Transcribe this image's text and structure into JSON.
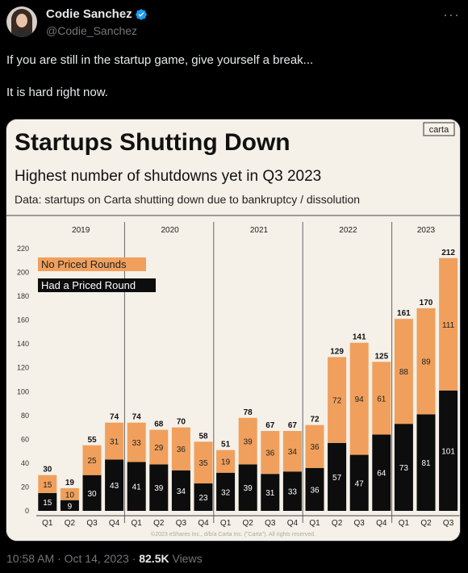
{
  "tweet": {
    "author_name": "Codie Sanchez",
    "author_handle": "@Codie_Sanchez",
    "text_line1": "If you are still in the startup game, give yourself a break...",
    "text_line2": "It is hard right now.",
    "time": "10:58 AM",
    "date": "Oct 14, 2023",
    "views_count": "82.5K",
    "views_label": "Views",
    "separator": "·"
  },
  "icons": {
    "verified": "verified-badge-icon",
    "more": "more-options-icon"
  },
  "colors": {
    "no_priced": "#f0a05c",
    "priced": "#0d0d0d",
    "chart_bg": "#f5f0e8",
    "verified": "#1d9bf0"
  },
  "chart_data": {
    "type": "bar",
    "stacked": true,
    "title": "Startups Shutting Down",
    "subtitle": "Highest number of shutdowns yet in Q3 2023",
    "source_note": "Data: startups on Carta shutting down due to bankruptcy / dissolution",
    "brand": "carta",
    "copyright": "©2023 eShares Inc., d/b/a Carta Inc. (\"Carta\"). All rights reserved.",
    "years": [
      "2019",
      "2020",
      "2021",
      "2022",
      "2023"
    ],
    "categories": [
      "Q1",
      "Q2",
      "Q3",
      "Q4",
      "Q1",
      "Q2",
      "Q3",
      "Q4",
      "Q1",
      "Q2",
      "Q3",
      "Q4",
      "Q1",
      "Q2",
      "Q3",
      "Q4",
      "Q1",
      "Q2",
      "Q3"
    ],
    "series": [
      {
        "name": "Had a Priced Round",
        "values": [
          15,
          9,
          30,
          43,
          41,
          39,
          34,
          23,
          32,
          39,
          31,
          33,
          36,
          57,
          47,
          64,
          73,
          81,
          101
        ]
      },
      {
        "name": "No Priced Rounds",
        "values": [
          15,
          10,
          25,
          31,
          33,
          29,
          36,
          35,
          19,
          39,
          36,
          34,
          36,
          72,
          94,
          61,
          88,
          89,
          111
        ]
      }
    ],
    "totals": [
      30,
      19,
      55,
      74,
      74,
      68,
      70,
      58,
      51,
      78,
      67,
      67,
      72,
      129,
      141,
      125,
      161,
      170,
      212
    ],
    "ylim": [
      0,
      220
    ],
    "yticks": [
      0,
      20,
      40,
      60,
      80,
      100,
      120,
      140,
      160,
      180,
      200,
      220
    ],
    "legend_position": "top-left",
    "grid": false
  }
}
